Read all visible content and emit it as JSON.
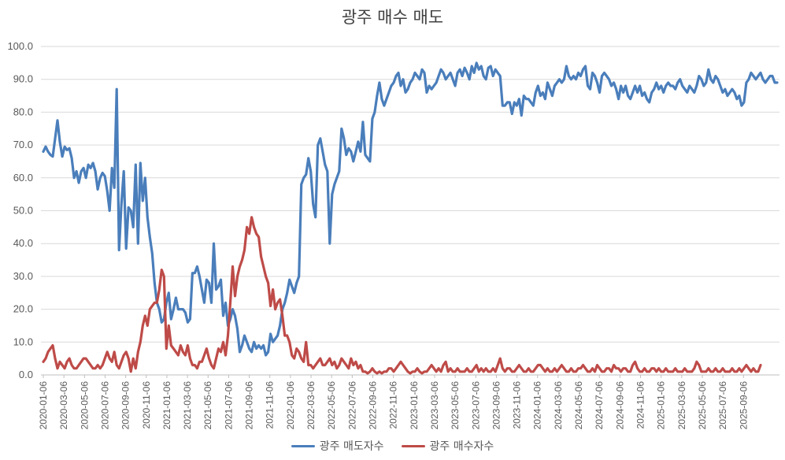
{
  "chart_data": {
    "type": "line",
    "title": "광주 매수 매도",
    "xlabel": "",
    "ylabel": "",
    "ylim": [
      0,
      100
    ],
    "grid": true,
    "legend_position": "bottom",
    "y_tick_labels": [
      "0.0",
      "10.0",
      "20.0",
      "30.0",
      "40.0",
      "50.0",
      "60.0",
      "70.0",
      "80.0",
      "90.0",
      "100.0"
    ],
    "x_tick_labels": [
      "2020-01-06",
      "2020-03-06",
      "2020-05-06",
      "2020-07-06",
      "2020-09-06",
      "2020-11-06",
      "2021-01-06",
      "2021-03-06",
      "2021-05-06",
      "2021-07-06",
      "2021-09-06",
      "2021-11-06",
      "2022-01-06",
      "2022-03-06",
      "2022-05-06",
      "2022-07-06",
      "2022-09-06",
      "2022-11-06",
      "2023-01-06",
      "2023-03-06",
      "2023-05-06",
      "2023-07-06",
      "2023-09-06",
      "2023-11-06",
      "2024-01-06",
      "2024-03-06",
      "2024-05-06",
      "2024-07-06",
      "2024-09-06",
      "2024-11-06",
      "2025-01-06",
      "2025-03-06",
      "2025-05-06",
      "2025-07-06",
      "2025-09-06"
    ],
    "x_points_per_tick": 8.7,
    "series": [
      {
        "name": "광주 매도자수",
        "color": "#4a7ebb",
        "values": [
          68,
          69.5,
          68,
          67,
          66.5,
          72,
          77.5,
          71,
          66.5,
          69.5,
          68.5,
          69,
          66,
          60,
          62,
          58.5,
          62,
          63,
          60,
          64,
          63,
          64.5,
          62,
          56.5,
          60,
          61.5,
          60.5,
          56,
          50,
          63,
          57,
          87,
          38,
          52,
          62,
          38.5,
          51,
          50,
          45,
          64,
          40,
          64.5,
          53,
          60,
          48,
          42,
          37,
          28,
          22,
          20,
          16,
          17,
          22,
          25,
          17,
          20,
          23.5,
          20,
          20,
          20,
          19,
          16,
          17,
          31,
          31,
          33,
          30,
          26,
          22,
          29,
          28,
          22,
          40,
          26,
          27,
          29,
          18,
          22,
          15,
          17,
          20,
          18,
          14,
          7,
          9,
          12,
          10,
          8,
          7,
          10,
          8,
          9,
          8,
          9,
          6,
          7,
          12.5,
          10,
          11,
          12,
          15,
          20,
          22,
          25,
          29,
          27,
          25,
          28,
          30,
          58,
          60,
          61,
          66,
          62,
          52,
          48,
          70,
          72,
          68,
          64,
          62,
          40,
          55,
          58,
          60,
          62,
          75,
          72,
          67,
          69,
          68,
          65,
          68,
          71,
          68,
          77,
          67,
          66,
          65,
          78,
          80,
          85,
          89,
          84,
          82,
          84,
          86,
          88,
          89,
          91,
          92,
          88,
          90,
          86,
          87,
          89,
          90,
          92,
          91,
          90,
          93,
          92,
          86,
          88,
          87,
          88,
          89,
          91,
          93,
          92,
          90,
          91,
          92,
          90,
          88,
          92,
          93,
          91,
          93.5,
          92,
          90,
          94,
          92,
          95,
          93,
          94,
          91,
          90,
          93.5,
          94,
          91,
          93,
          92,
          91,
          82,
          82,
          83,
          83,
          79.5,
          83,
          82,
          84,
          79,
          85,
          84,
          84,
          83,
          82,
          86,
          88,
          85,
          86,
          84,
          89,
          87,
          85,
          88,
          89,
          90,
          89,
          90,
          94,
          91,
          90,
          91,
          90,
          92,
          91,
          93,
          94,
          88,
          87,
          92,
          91,
          89,
          86,
          91,
          92,
          91,
          90,
          88,
          89,
          87,
          84,
          88,
          86,
          88,
          85,
          84,
          86,
          88,
          86,
          88,
          85,
          86,
          84,
          83,
          86,
          87,
          89,
          87,
          88,
          86,
          88,
          89,
          88,
          88,
          87,
          89,
          90,
          88,
          87,
          86,
          88,
          87,
          86,
          88,
          91,
          90,
          88,
          89,
          93,
          90,
          89,
          91,
          90,
          88,
          86,
          87,
          85,
          86,
          87,
          86,
          84,
          85,
          82,
          83,
          89,
          90,
          92,
          91,
          90,
          91,
          92,
          90,
          89,
          90,
          91,
          91,
          89,
          89
        ]
      },
      {
        "name": "광주 매수자수",
        "color": "#be4b48",
        "values": [
          4,
          5,
          7,
          8,
          9,
          5,
          2,
          4,
          3,
          2,
          4,
          5,
          3,
          2,
          2,
          3,
          4,
          5,
          5,
          4,
          3,
          2,
          2,
          3,
          2,
          3,
          5,
          7,
          5,
          4,
          7,
          3,
          2,
          4,
          6,
          7,
          5,
          1,
          5,
          2,
          7,
          10,
          15,
          18,
          15,
          20,
          21,
          22,
          22,
          26,
          32,
          30,
          8,
          15,
          9,
          8,
          7,
          6,
          9,
          7,
          6,
          9,
          5,
          3,
          3,
          2,
          4,
          4,
          6,
          8,
          5,
          3,
          2,
          5,
          8,
          7,
          10,
          6,
          12,
          22,
          33,
          24,
          30,
          33,
          35,
          38,
          45,
          43,
          48,
          45,
          43,
          42,
          36,
          33,
          30,
          28,
          21,
          26,
          20,
          22,
          23,
          18,
          12,
          12,
          10,
          6,
          5,
          8,
          7,
          5,
          4,
          10,
          3,
          3,
          2,
          3,
          4,
          5,
          3,
          3,
          4,
          5,
          3,
          4,
          2,
          3,
          5,
          4,
          3,
          2,
          5,
          3,
          4,
          2,
          3,
          1,
          1,
          0.5,
          1,
          2,
          1,
          0.5,
          1,
          0.5,
          1,
          1,
          2,
          2,
          1,
          2,
          3,
          4,
          3,
          2,
          1,
          0.5,
          1,
          1,
          2,
          1,
          0.5,
          1,
          1,
          2,
          3,
          2,
          1,
          2,
          1,
          3,
          4,
          1,
          2,
          1,
          1,
          2,
          1,
          1,
          1,
          2,
          1,
          1,
          2,
          3,
          1,
          2,
          1,
          2,
          1,
          1,
          2,
          1,
          3,
          5,
          2,
          1,
          2,
          2,
          1,
          1,
          2,
          3,
          2,
          1,
          1,
          2,
          1,
          1,
          2,
          3,
          3,
          2,
          1,
          2,
          1,
          1,
          2,
          1,
          2,
          3,
          2,
          1,
          1,
          2,
          1,
          1,
          2,
          2,
          3,
          2,
          1,
          1,
          2,
          1,
          3,
          2,
          1,
          1,
          2,
          2,
          1,
          3,
          2,
          2,
          1,
          2,
          2,
          1,
          1,
          3,
          4,
          2,
          1,
          1,
          2,
          1,
          1,
          2,
          2,
          1,
          2,
          1,
          1,
          2,
          1,
          1,
          1,
          2,
          1,
          1,
          1,
          2,
          1,
          1,
          1,
          2,
          4,
          3,
          1,
          1,
          1,
          2,
          1,
          1,
          2,
          1,
          1,
          2,
          1,
          1,
          1,
          2,
          1,
          1,
          2,
          1,
          2,
          3,
          2,
          1,
          2,
          1,
          1,
          3
        ]
      }
    ]
  }
}
